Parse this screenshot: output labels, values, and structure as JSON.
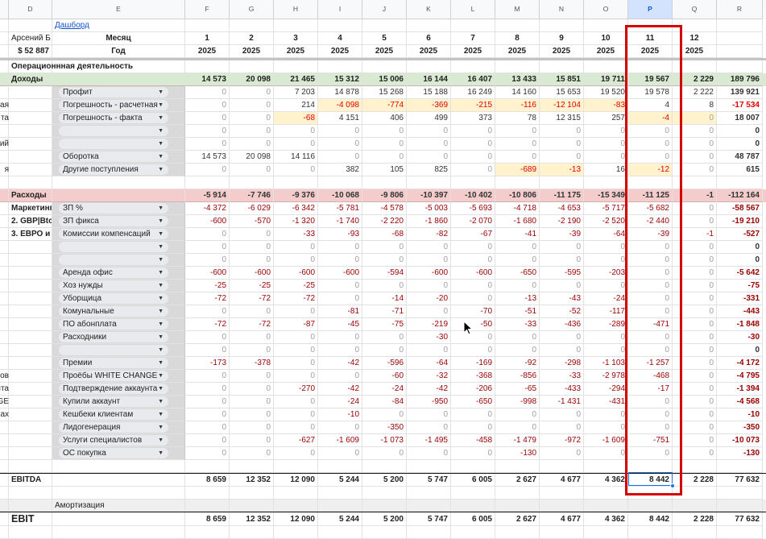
{
  "columns": [
    "",
    "D",
    "E",
    "F",
    "G",
    "H",
    "I",
    "J",
    "K",
    "L",
    "M",
    "N",
    "O",
    "P",
    "Q",
    "R"
  ],
  "selected_column": "P",
  "dashboard_link": "Дашборд",
  "user_name": "Арсений Б",
  "balance": "$ 52 887",
  "month_label": "Месяц",
  "year_label": "Год",
  "months": [
    "1",
    "2",
    "3",
    "4",
    "5",
    "6",
    "7",
    "8",
    "9",
    "10",
    "11",
    "12",
    ""
  ],
  "years": [
    "2025",
    "2025",
    "2025",
    "2025",
    "2025",
    "2025",
    "2025",
    "2025",
    "2025",
    "2025",
    "2025",
    "2025",
    ""
  ],
  "section_title": "Операционнная деятельность",
  "colors": {
    "income_row": "#d9ead3",
    "expense_row": "#f4cccc",
    "highlight": "#fff2cc",
    "annotation_box": "#d40000",
    "selection": "#1a73e8"
  },
  "rows": [
    {
      "type": "income",
      "d": "Доходы",
      "values": [
        "14 573",
        "20 098",
        "21 465",
        "15 312",
        "15 006",
        "16 144",
        "16 407",
        "13 433",
        "15 851",
        "19 711",
        "19 567",
        "2 229",
        "189 796"
      ]
    },
    {
      "type": "item",
      "c": "",
      "e": "Профит",
      "values": [
        "0",
        "0",
        "7 203",
        "14 878",
        "15 268",
        "15 188",
        "16 249",
        "14 160",
        "15 653",
        "19 520",
        "19 578",
        "2 222",
        "139 921"
      ]
    },
    {
      "type": "item",
      "c": "четная",
      "e": "Погрешность - расчетная",
      "values": [
        "0",
        "0",
        "214",
        "-4 098",
        "-774",
        "-369",
        "-215",
        "-116",
        "-12 104",
        "-83",
        "4",
        "8",
        "-17 534"
      ],
      "highlight": [
        "I",
        "J",
        "K",
        "L",
        "M",
        "N",
        "O"
      ]
    },
    {
      "type": "item",
      "c": "та",
      "e": "Погрешность - факта",
      "values": [
        "0",
        "0",
        "-68",
        "4 151",
        "406",
        "499",
        "373",
        "78",
        "12 315",
        "257",
        "-4",
        "0",
        "18 007"
      ],
      "highlight": [
        "H",
        "P",
        "Q"
      ]
    },
    {
      "type": "item",
      "c": "",
      "e": "",
      "values": [
        "0",
        "0",
        "0",
        "0",
        "0",
        "0",
        "0",
        "0",
        "0",
        "0",
        "0",
        "0",
        "0"
      ]
    },
    {
      "type": "item",
      "c": "аций",
      "e": "",
      "values": [
        "0",
        "0",
        "0",
        "0",
        "0",
        "0",
        "0",
        "0",
        "0",
        "0",
        "0",
        "0",
        "0"
      ]
    },
    {
      "type": "item",
      "c": "",
      "e": "Оборотка",
      "values": [
        "14 573",
        "20 098",
        "14 116",
        "0",
        "0",
        "0",
        "0",
        "0",
        "0",
        "0",
        "0",
        "0",
        "48 787"
      ]
    },
    {
      "type": "item",
      "c": "я",
      "e": "Другие поступления",
      "values": [
        "0",
        "0",
        "0",
        "382",
        "105",
        "825",
        "0",
        "-689",
        "-13",
        "16",
        "-12",
        "0",
        "615"
      ],
      "highlight": [
        "M",
        "N",
        "P"
      ]
    },
    {
      "type": "blank"
    },
    {
      "type": "extot",
      "d": "Расходы",
      "values": [
        "-5 914",
        "-7 746",
        "-9 376",
        "-10 068",
        "-9 806",
        "-10 397",
        "-10 402",
        "-10 806",
        "-11 175",
        "-15 349",
        "-11 125",
        "-1",
        "-112 164"
      ]
    },
    {
      "type": "exp",
      "d": "Маркетинг",
      "e": "ЗП %",
      "values": [
        "-4 372",
        "-6 029",
        "-6 342",
        "-5 781",
        "-4 578",
        "-5 003",
        "-5 693",
        "-4 718",
        "-4 653",
        "-5 717",
        "-5 682",
        "0",
        "-58 567"
      ]
    },
    {
      "type": "exp",
      "d": "2. GBP|Btc",
      "e": "ЗП фикса",
      "values": [
        "-600",
        "-570",
        "-1 320",
        "-1 740",
        "-2 220",
        "-1 860",
        "-2 070",
        "-1 680",
        "-2 190",
        "-2 520",
        "-2 440",
        "0",
        "-19 210"
      ]
    },
    {
      "type": "exp",
      "d": "3. ЕВРО и",
      "e": "Комиссии компенсаций",
      "values": [
        "0",
        "0",
        "-33",
        "-93",
        "-68",
        "-82",
        "-67",
        "-41",
        "-39",
        "-64",
        "-39",
        "-1",
        "-527"
      ]
    },
    {
      "type": "exp",
      "e": "",
      "values": [
        "0",
        "0",
        "0",
        "0",
        "0",
        "0",
        "0",
        "0",
        "0",
        "0",
        "0",
        "0",
        "0"
      ]
    },
    {
      "type": "exp",
      "e": "",
      "values": [
        "0",
        "0",
        "0",
        "0",
        "0",
        "0",
        "0",
        "0",
        "0",
        "0",
        "0",
        "0",
        "0"
      ]
    },
    {
      "type": "exp",
      "e": "Аренда офис",
      "values": [
        "-600",
        "-600",
        "-600",
        "-600",
        "-594",
        "-600",
        "-600",
        "-650",
        "-595",
        "-203",
        "0",
        "0",
        "-5 642"
      ]
    },
    {
      "type": "exp",
      "e": "Хоз нужды",
      "values": [
        "-25",
        "-25",
        "-25",
        "0",
        "0",
        "0",
        "0",
        "0",
        "0",
        "0",
        "0",
        "0",
        "-75"
      ]
    },
    {
      "type": "exp",
      "e": "Уборщица",
      "values": [
        "-72",
        "-72",
        "-72",
        "0",
        "-14",
        "-20",
        "0",
        "-13",
        "-43",
        "-24",
        "0",
        "0",
        "-331"
      ]
    },
    {
      "type": "exp",
      "e": "Комунальные",
      "values": [
        "0",
        "0",
        "0",
        "-81",
        "-71",
        "0",
        "-70",
        "-51",
        "-52",
        "-117",
        "0",
        "0",
        "-443"
      ]
    },
    {
      "type": "exp",
      "e": "ПО абонплата",
      "values": [
        "-72",
        "-72",
        "-87",
        "-45",
        "-75",
        "-219",
        "-50",
        "-33",
        "-436",
        "-289",
        "-471",
        "0",
        "-1 848"
      ]
    },
    {
      "type": "exp",
      "e": "Расходники",
      "values": [
        "0",
        "0",
        "0",
        "0",
        "0",
        "-30",
        "0",
        "0",
        "0",
        "0",
        "0",
        "0",
        "-30"
      ]
    },
    {
      "type": "exp",
      "e": "",
      "values": [
        "0",
        "0",
        "0",
        "0",
        "0",
        "0",
        "0",
        "0",
        "0",
        "0",
        "0",
        "0",
        "0"
      ]
    },
    {
      "type": "exp",
      "e": "Премии",
      "values": [
        "-173",
        "-378",
        "0",
        "-42",
        "-596",
        "-64",
        "-169",
        "-92",
        "-298",
        "-1 103",
        "-1 257",
        "0",
        "-4 172"
      ]
    },
    {
      "type": "exp",
      "c": "ов",
      "e": "Проёбы WHITE CHANGE",
      "values": [
        "0",
        "0",
        "0",
        "0",
        "-60",
        "-32",
        "-368",
        "-856",
        "-33",
        "-2 978",
        "-468",
        "0",
        "-4 795"
      ]
    },
    {
      "type": "exp",
      "c": "каунта",
      "e": "Подтверждение аккаунта",
      "values": [
        "0",
        "0",
        "-270",
        "-42",
        "-24",
        "-42",
        "-206",
        "-65",
        "-433",
        "-294",
        "-17",
        "0",
        "-1 394"
      ]
    },
    {
      "type": "exp",
      "c": "ANGE",
      "e": "Купили аккаунт",
      "values": [
        "0",
        "0",
        "0",
        "-24",
        "-84",
        "-950",
        "-650",
        "-998",
        "-1 431",
        "-431",
        "0",
        "0",
        "-4 568"
      ]
    },
    {
      "type": "exp",
      "c": "никах",
      "e": "Кешбеки клиентам",
      "values": [
        "0",
        "0",
        "0",
        "-10",
        "0",
        "0",
        "0",
        "0",
        "0",
        "0",
        "0",
        "0",
        "-10"
      ]
    },
    {
      "type": "exp",
      "e": "Лидогенерация",
      "values": [
        "0",
        "0",
        "0",
        "0",
        "-350",
        "0",
        "0",
        "0",
        "0",
        "0",
        "0",
        "0",
        "-350"
      ]
    },
    {
      "type": "exp",
      "e": "Услуги специалистов",
      "values": [
        "0",
        "0",
        "-627",
        "-1 609",
        "-1 073",
        "-1 495",
        "-458",
        "-1 479",
        "-972",
        "-1 609",
        "-751",
        "0",
        "-10 073"
      ]
    },
    {
      "type": "exp",
      "e": "ОС покупка",
      "values": [
        "0",
        "0",
        "0",
        "0",
        "0",
        "0",
        "0",
        "-130",
        "0",
        "0",
        "0",
        "0",
        "-130"
      ]
    },
    {
      "type": "blank"
    },
    {
      "type": "ebitda",
      "d": "EBITDA",
      "values": [
        "8 659",
        "12 352",
        "12 090",
        "5 244",
        "5 200",
        "5 747",
        "6 005",
        "2 627",
        "4 677",
        "4 362",
        "8 442",
        "2 228",
        "77 632"
      ]
    },
    {
      "type": "blank"
    },
    {
      "type": "amort",
      "e": "Амортизация"
    },
    {
      "type": "ebit",
      "d": "EBIT",
      "values": [
        "8 659",
        "12 352",
        "12 090",
        "5 244",
        "5 200",
        "5 747",
        "6 005",
        "2 627",
        "4 677",
        "4 362",
        "8 442",
        "2 228",
        "77 632"
      ]
    },
    {
      "type": "blank"
    }
  ]
}
